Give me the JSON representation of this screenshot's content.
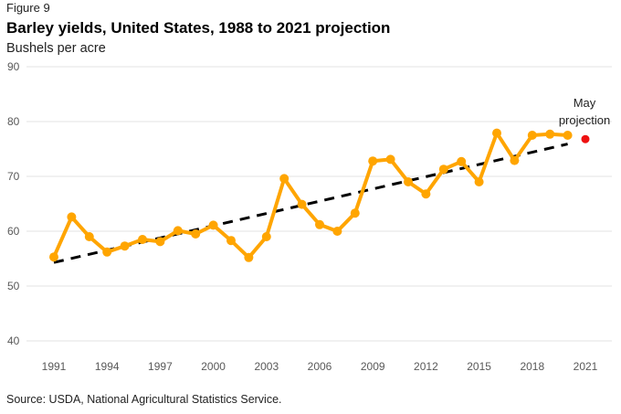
{
  "figure_label": "Figure 9",
  "source": "Source: USDA, National Agricultural Statistics Service.",
  "colors": {
    "series": "#FFA500",
    "trend": "#000000",
    "projection": "#EE1111",
    "grid": "#e3e3e3"
  },
  "chart_data": {
    "type": "line",
    "title": "Barley yields, United States, 1988 to 2021 projection",
    "ylabel": "Bushels per acre",
    "xlabel": "",
    "ylim": [
      40,
      90
    ],
    "yticks": [
      90,
      80,
      70,
      60,
      50,
      40
    ],
    "xlim": [
      1991,
      2021
    ],
    "xticks": [
      1991,
      1994,
      1997,
      2000,
      2003,
      2006,
      2009,
      2012,
      2015,
      2018,
      2021
    ],
    "grid": true,
    "series": [
      {
        "name": "Barley yield",
        "style": "solid-with-markers",
        "x": [
          1991,
          1992,
          1993,
          1994,
          1995,
          1996,
          1997,
          1998,
          1999,
          2000,
          2001,
          2002,
          2003,
          2004,
          2005,
          2006,
          2007,
          2008,
          2009,
          2010,
          2011,
          2012,
          2013,
          2014,
          2015,
          2016,
          2017,
          2018,
          2019,
          2020
        ],
        "values": [
          55.3,
          62.6,
          59.0,
          56.2,
          57.3,
          58.5,
          58.1,
          60.1,
          59.5,
          61.1,
          58.3,
          55.2,
          59.0,
          69.6,
          64.9,
          61.2,
          60.0,
          63.3,
          72.8,
          73.1,
          69.0,
          66.8,
          71.3,
          72.7,
          69.0,
          77.9,
          72.9,
          77.5,
          77.7,
          77.5
        ]
      },
      {
        "name": "Trend",
        "style": "dashed",
        "x": [
          1991,
          2020
        ],
        "values": [
          54.3,
          75.9
        ]
      },
      {
        "name": "May projection",
        "style": "point",
        "x": [
          2021
        ],
        "values": [
          76.8
        ]
      }
    ],
    "annotations": [
      {
        "text_lines": [
          "May",
          "projection"
        ],
        "x": 2021,
        "y": 76.8
      }
    ]
  }
}
